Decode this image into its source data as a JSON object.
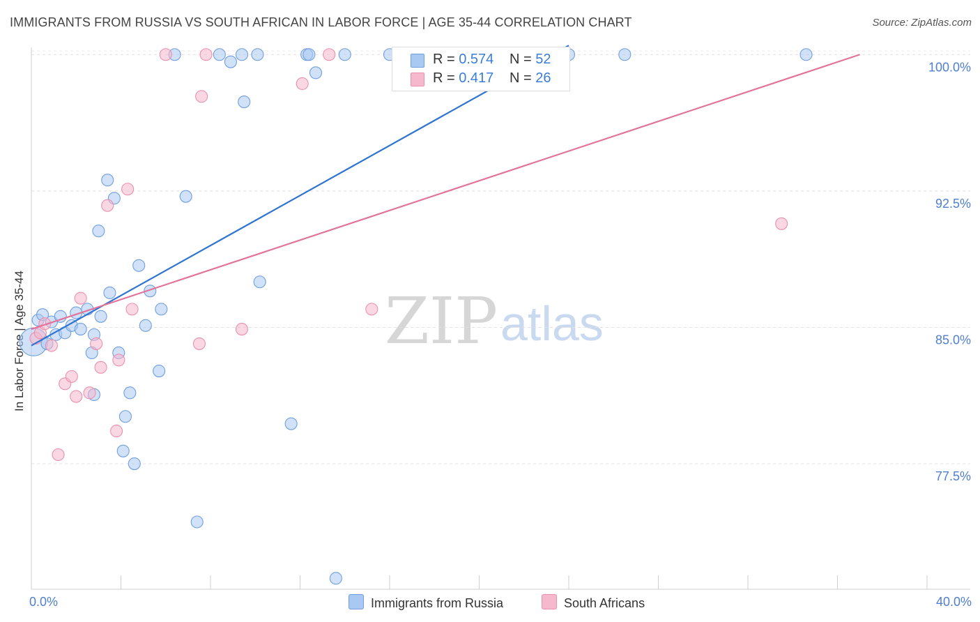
{
  "header": {
    "title": "IMMIGRANTS FROM RUSSIA VS SOUTH AFRICAN IN LABOR FORCE | AGE 35-44 CORRELATION CHART",
    "source": "Source: ZipAtlas.com"
  },
  "watermark": {
    "zip": "ZIP",
    "atlas": "atlas"
  },
  "legend": {
    "rows": [
      {
        "r_label": "R = ",
        "r_value": "0.574",
        "n_label": "N = ",
        "n_value": "52",
        "color": "#a9c8f2"
      },
      {
        "r_label": "R = ",
        "r_value": "0.417",
        "n_label": "N = ",
        "n_value": "26",
        "color": "#f6b8cc"
      }
    ]
  },
  "bottom_legend": {
    "items": [
      {
        "label": "Immigrants from Russia",
        "color": "#a9c8f2"
      },
      {
        "label": "South Africans",
        "color": "#f6b8cc"
      }
    ]
  },
  "chart_data": {
    "type": "scatter",
    "title": "IMMIGRANTS FROM RUSSIA VS SOUTH AFRICAN IN LABOR FORCE | AGE 35-44 CORRELATION CHART",
    "xlabel": "",
    "ylabel": "In Labor Force | Age 35-44",
    "xlim": [
      0,
      40
    ],
    "ylim": [
      70.6,
      100.7
    ],
    "x_tick_labels": [
      "0.0%",
      "40.0%"
    ],
    "y_ticks": [
      77.5,
      85.0,
      92.5,
      100.0
    ],
    "y_tick_labels": [
      "77.5%",
      "85.0%",
      "92.5%",
      "100.0%"
    ],
    "series": [
      {
        "name": "Immigrants from Russia",
        "color": "#a9c8f2",
        "stroke": "#6f9fe0",
        "line_color": "#2f74d0",
        "trend": {
          "x": [
            0.0,
            24.0
          ],
          "y": [
            84.0,
            100.5
          ]
        },
        "points": [
          {
            "x": 0.1,
            "y": 84.2,
            "big": true
          },
          {
            "x": 0.3,
            "y": 85.4
          },
          {
            "x": 0.5,
            "y": 85.7
          },
          {
            "x": 0.7,
            "y": 84.1
          },
          {
            "x": 0.9,
            "y": 85.3
          },
          {
            "x": 1.1,
            "y": 84.6
          },
          {
            "x": 1.3,
            "y": 85.6
          },
          {
            "x": 1.5,
            "y": 84.7
          },
          {
            "x": 1.8,
            "y": 85.1
          },
          {
            "x": 2.0,
            "y": 85.8
          },
          {
            "x": 2.2,
            "y": 84.9
          },
          {
            "x": 2.5,
            "y": 86.0
          },
          {
            "x": 2.7,
            "y": 83.6
          },
          {
            "x": 2.8,
            "y": 81.3
          },
          {
            "x": 2.8,
            "y": 84.6
          },
          {
            "x": 3.0,
            "y": 90.3
          },
          {
            "x": 3.1,
            "y": 85.6
          },
          {
            "x": 3.4,
            "y": 93.1
          },
          {
            "x": 3.5,
            "y": 86.9
          },
          {
            "x": 3.7,
            "y": 92.1
          },
          {
            "x": 3.9,
            "y": 83.6
          },
          {
            "x": 4.1,
            "y": 78.2
          },
          {
            "x": 4.2,
            "y": 80.1
          },
          {
            "x": 4.4,
            "y": 81.4
          },
          {
            "x": 4.6,
            "y": 77.5
          },
          {
            "x": 4.8,
            "y": 88.4
          },
          {
            "x": 5.1,
            "y": 85.1
          },
          {
            "x": 5.3,
            "y": 87.0
          },
          {
            "x": 5.7,
            "y": 82.6
          },
          {
            "x": 5.8,
            "y": 86.0
          },
          {
            "x": 6.4,
            "y": 100.0
          },
          {
            "x": 6.9,
            "y": 92.2
          },
          {
            "x": 7.4,
            "y": 74.3
          },
          {
            "x": 8.4,
            "y": 100.0
          },
          {
            "x": 8.9,
            "y": 99.6
          },
          {
            "x": 9.4,
            "y": 100.0
          },
          {
            "x": 9.5,
            "y": 97.4
          },
          {
            "x": 10.1,
            "y": 100.0
          },
          {
            "x": 10.2,
            "y": 87.5
          },
          {
            "x": 11.6,
            "y": 79.7
          },
          {
            "x": 12.3,
            "y": 100.0
          },
          {
            "x": 12.4,
            "y": 100.0
          },
          {
            "x": 12.7,
            "y": 99.0
          },
          {
            "x": 13.6,
            "y": 71.2
          },
          {
            "x": 14.0,
            "y": 100.0
          },
          {
            "x": 16.0,
            "y": 100.0
          },
          {
            "x": 17.5,
            "y": 100.0
          },
          {
            "x": 19.9,
            "y": 100.0
          },
          {
            "x": 21.0,
            "y": 100.0
          },
          {
            "x": 24.0,
            "y": 100.0
          },
          {
            "x": 26.5,
            "y": 100.0
          },
          {
            "x": 34.6,
            "y": 100.0
          }
        ]
      },
      {
        "name": "South Africans",
        "color": "#f6b8cc",
        "stroke": "#ec8fae",
        "line_color": "#e2739a",
        "trend": {
          "x": [
            0.0,
            37.0
          ],
          "y": [
            84.9,
            100.0
          ]
        },
        "points": [
          {
            "x": 0.2,
            "y": 84.4
          },
          {
            "x": 0.4,
            "y": 84.7
          },
          {
            "x": 0.6,
            "y": 85.2
          },
          {
            "x": 0.9,
            "y": 84.0
          },
          {
            "x": 1.2,
            "y": 78.0
          },
          {
            "x": 1.5,
            "y": 81.9
          },
          {
            "x": 1.8,
            "y": 82.3
          },
          {
            "x": 2.0,
            "y": 81.2
          },
          {
            "x": 2.2,
            "y": 86.6
          },
          {
            "x": 2.6,
            "y": 81.4
          },
          {
            "x": 2.9,
            "y": 84.1
          },
          {
            "x": 3.1,
            "y": 82.8
          },
          {
            "x": 3.4,
            "y": 91.7
          },
          {
            "x": 3.8,
            "y": 79.3
          },
          {
            "x": 3.9,
            "y": 83.2
          },
          {
            "x": 4.3,
            "y": 92.6
          },
          {
            "x": 4.5,
            "y": 86.0
          },
          {
            "x": 6.0,
            "y": 100.0
          },
          {
            "x": 7.5,
            "y": 84.1
          },
          {
            "x": 7.6,
            "y": 97.7
          },
          {
            "x": 7.8,
            "y": 100.0
          },
          {
            "x": 9.4,
            "y": 84.9
          },
          {
            "x": 12.1,
            "y": 98.4
          },
          {
            "x": 13.3,
            "y": 100.0
          },
          {
            "x": 15.2,
            "y": 86.0
          },
          {
            "x": 33.5,
            "y": 90.7
          }
        ]
      }
    ]
  }
}
